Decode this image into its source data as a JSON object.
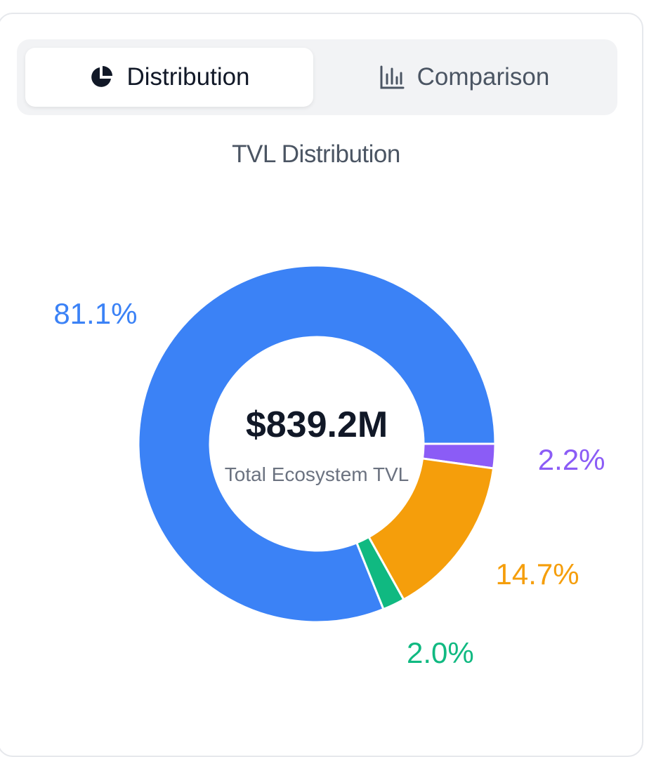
{
  "tabs": {
    "distribution": {
      "label": "Distribution",
      "icon": "pie-chart-icon"
    },
    "comparison": {
      "label": "Comparison",
      "icon": "bar-chart-icon"
    }
  },
  "chart_data": {
    "type": "pie",
    "title": "TVL Distribution",
    "center_value": "$839.2M",
    "center_label": "Total Ecosystem TVL",
    "slices": [
      {
        "label": "81.1%",
        "value": 81.1,
        "color": "#3b82f6"
      },
      {
        "label": "2.2%",
        "value": 2.2,
        "color": "#8b5cf6"
      },
      {
        "label": "14.7%",
        "value": 14.7,
        "color": "#f59e0b"
      },
      {
        "label": "2.0%",
        "value": 2.0,
        "color": "#10b981"
      }
    ]
  }
}
